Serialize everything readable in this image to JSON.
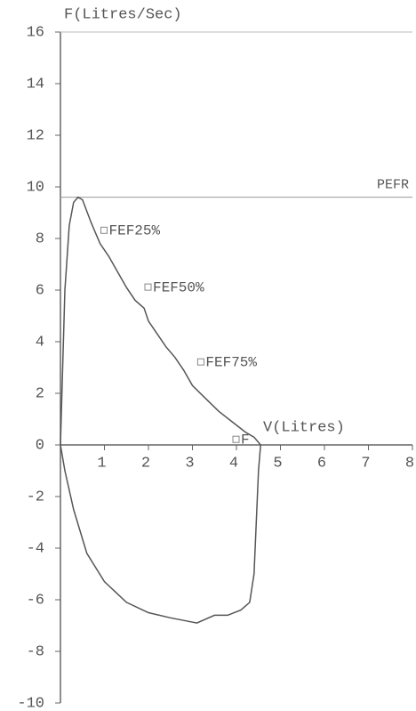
{
  "chart_data": {
    "type": "line",
    "y_label": "F(Litres/Sec)",
    "x_label": "V(Litres)",
    "xlim": [
      0,
      8
    ],
    "xticks": [
      1,
      2,
      3,
      4,
      5,
      6,
      7,
      8
    ],
    "ylim": [
      -10,
      16
    ],
    "yticks": [
      -10,
      -8,
      -6,
      -4,
      -2,
      0,
      2,
      4,
      6,
      8,
      10,
      12,
      14,
      16
    ],
    "series": [
      {
        "color": "#555555",
        "x": [
          0,
          0.05,
          0.1,
          0.2,
          0.3,
          0.4,
          0.5,
          0.7,
          0.9,
          1.1,
          1.3,
          1.5,
          1.7,
          1.9,
          2.0,
          2.2,
          2.4,
          2.6,
          2.8,
          3.0,
          3.3,
          3.6,
          3.9,
          4.2,
          4.4,
          4.5,
          4.55,
          4.5,
          4.45,
          4.4,
          4.3,
          4.1,
          3.8,
          3.5,
          3.1,
          2.8,
          2.5,
          2.0,
          1.5,
          1.0,
          0.6,
          0.3,
          0.1,
          0
        ],
        "values": [
          0,
          3,
          6,
          8.5,
          9.4,
          9.6,
          9.5,
          8.6,
          7.8,
          7.3,
          6.7,
          6.1,
          5.6,
          5.3,
          4.8,
          4.3,
          3.8,
          3.4,
          2.9,
          2.3,
          1.8,
          1.3,
          0.9,
          0.5,
          0.3,
          0.1,
          0,
          -1,
          -3,
          -5,
          -6.1,
          -6.4,
          -6.6,
          -6.6,
          -6.9,
          -6.8,
          -6.7,
          -6.5,
          -6.1,
          -5.3,
          -4.2,
          -2.5,
          -1,
          0
        ]
      }
    ],
    "reference_line": {
      "label": "PEFR",
      "value": 9.6
    },
    "annotations": [
      {
        "label": "FEF25%",
        "x": 1.0,
        "y": 8.3
      },
      {
        "label": "FEF50%",
        "x": 2.0,
        "y": 6.1
      },
      {
        "label": "FEF75%",
        "x": 3.2,
        "y": 3.2
      },
      {
        "label": "F",
        "x": 4.0,
        "y": 0.2
      }
    ]
  }
}
